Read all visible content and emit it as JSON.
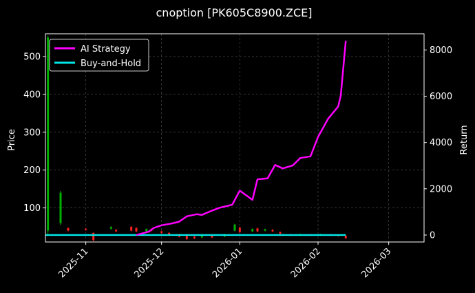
{
  "chart_data": {
    "type": "line",
    "title": "cnoption [PK605C8900.ZCE]",
    "ylabel_left": "Price",
    "ylabel_right": "Return",
    "ylim_left": [
      10,
      560
    ],
    "ylim_right": [
      -300,
      8700
    ],
    "y_ticks_left": [
      100,
      200,
      300,
      400,
      500
    ],
    "y_ticks_right": [
      0,
      2000,
      4000,
      6000,
      8000
    ],
    "xlim": [
      "2025-10-16",
      "2026-03-15"
    ],
    "x_ticks": [
      "2025-11",
      "2025-12",
      "2026-01",
      "2026-02",
      "2026-03"
    ],
    "grid": true,
    "legend_position": "upper-left",
    "colors": {
      "ai_strategy": "#ff00ff",
      "buy_and_hold": "#00e5e5",
      "candle_up": "#00b000",
      "candle_down": "#ff2020"
    },
    "series": [
      {
        "name": "AI Strategy",
        "axis": "right",
        "x": [
          "2025-11-21",
          "2025-11-26",
          "2025-11-28",
          "2025-12-01",
          "2025-12-05",
          "2025-12-08",
          "2025-12-11",
          "2025-12-15",
          "2025-12-17",
          "2025-12-20",
          "2025-12-24",
          "2025-12-29",
          "2026-01-01",
          "2026-01-06",
          "2026-01-08",
          "2026-01-12",
          "2026-01-15",
          "2026-01-18",
          "2026-01-22",
          "2026-01-25",
          "2026-01-29",
          "2026-02-01",
          "2026-02-05",
          "2026-02-09",
          "2026-02-10",
          "2026-02-12"
        ],
        "values": [
          0,
          150,
          310,
          420,
          500,
          580,
          810,
          900,
          870,
          1010,
          1180,
          1310,
          1920,
          1520,
          2410,
          2450,
          3030,
          2880,
          3010,
          3330,
          3400,
          4240,
          5030,
          5560,
          6030,
          8400
        ]
      },
      {
        "name": "Buy-and-Hold",
        "axis": "right",
        "x": [
          "2025-10-16",
          "2026-02-12"
        ],
        "values": [
          0,
          0
        ]
      }
    ],
    "candles": [
      {
        "date": "2025-10-17",
        "open": 40,
        "close": 550,
        "high": 555,
        "low": 30
      },
      {
        "date": "2025-10-22",
        "open": 60,
        "close": 140,
        "high": 145,
        "low": 55
      },
      {
        "date": "2025-10-25",
        "open": 47,
        "close": 40,
        "high": 48,
        "low": 38
      },
      {
        "date": "2025-11-01",
        "open": 45,
        "close": 42,
        "high": 47,
        "low": 40
      },
      {
        "date": "2025-11-04",
        "open": 34,
        "close": 15,
        "high": 35,
        "low": 12
      },
      {
        "date": "2025-11-11",
        "open": 45,
        "close": 49,
        "high": 52,
        "low": 43
      },
      {
        "date": "2025-11-13",
        "open": 42,
        "close": 38,
        "high": 44,
        "low": 36
      },
      {
        "date": "2025-11-19",
        "open": 50,
        "close": 40,
        "high": 52,
        "low": 38
      },
      {
        "date": "2025-11-21",
        "open": 47,
        "close": 38,
        "high": 49,
        "low": 36
      },
      {
        "date": "2025-11-25",
        "open": 38,
        "close": 44,
        "high": 46,
        "low": 36
      },
      {
        "date": "2025-11-27",
        "open": 44,
        "close": 40,
        "high": 46,
        "low": 38
      },
      {
        "date": "2025-12-01",
        "open": 38,
        "close": 34,
        "high": 40,
        "low": 32
      },
      {
        "date": "2025-12-04",
        "open": 34,
        "close": 30,
        "high": 36,
        "low": 28
      },
      {
        "date": "2025-12-08",
        "open": 30,
        "close": 24,
        "high": 32,
        "low": 22
      },
      {
        "date": "2025-12-11",
        "open": 28,
        "close": 18,
        "high": 30,
        "low": 15
      },
      {
        "date": "2025-12-14",
        "open": 24,
        "close": 20,
        "high": 26,
        "low": 18
      },
      {
        "date": "2025-12-17",
        "open": 22,
        "close": 26,
        "high": 28,
        "low": 20
      },
      {
        "date": "2025-12-21",
        "open": 26,
        "close": 22,
        "high": 28,
        "low": 20
      },
      {
        "date": "2025-12-26",
        "open": 25,
        "close": 30,
        "high": 32,
        "low": 23
      },
      {
        "date": "2025-12-30",
        "open": 40,
        "close": 56,
        "high": 58,
        "low": 38
      },
      {
        "date": "2026-01-01",
        "open": 48,
        "close": 36,
        "high": 50,
        "low": 34
      },
      {
        "date": "2026-01-06",
        "open": 38,
        "close": 44,
        "high": 46,
        "low": 36
      },
      {
        "date": "2026-01-08",
        "open": 46,
        "close": 38,
        "high": 48,
        "low": 36
      },
      {
        "date": "2026-01-11",
        "open": 40,
        "close": 44,
        "high": 45,
        "low": 38
      },
      {
        "date": "2026-01-14",
        "open": 42,
        "close": 38,
        "high": 44,
        "low": 36
      },
      {
        "date": "2026-01-17",
        "open": 36,
        "close": 32,
        "high": 38,
        "low": 30
      },
      {
        "date": "2026-01-21",
        "open": 30,
        "close": 28,
        "high": 32,
        "low": 26
      },
      {
        "date": "2026-01-25",
        "open": 28,
        "close": 30,
        "high": 32,
        "low": 26
      },
      {
        "date": "2026-01-29",
        "open": 30,
        "close": 28,
        "high": 32,
        "low": 26
      },
      {
        "date": "2026-02-02",
        "open": 28,
        "close": 30,
        "high": 32,
        "low": 26
      },
      {
        "date": "2026-02-06",
        "open": 30,
        "close": 28,
        "high": 32,
        "low": 26
      },
      {
        "date": "2026-02-09",
        "open": 28,
        "close": 26,
        "high": 30,
        "low": 24
      },
      {
        "date": "2026-02-12",
        "open": 26,
        "close": 20,
        "high": 28,
        "low": 18
      }
    ]
  }
}
